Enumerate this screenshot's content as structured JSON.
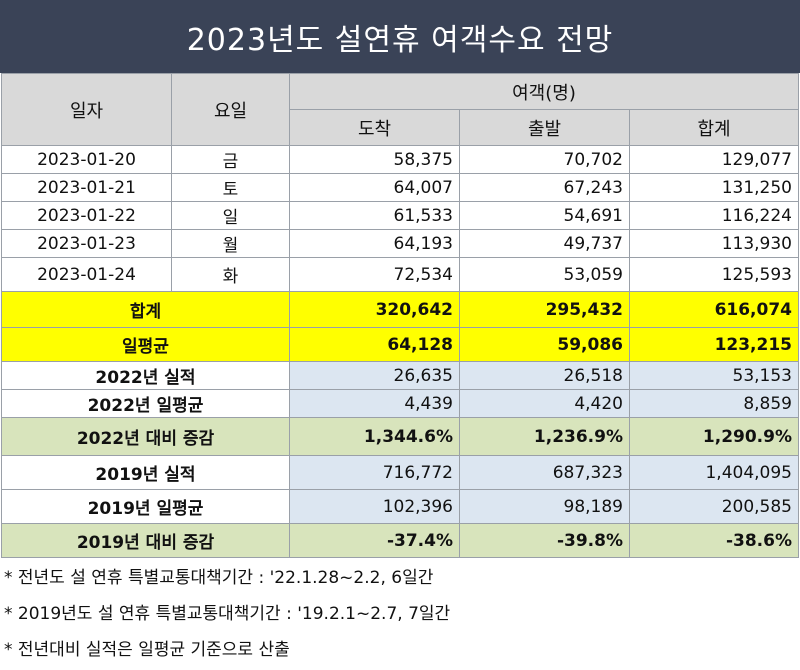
{
  "title": "2023년도 설연휴 여객수요 전망",
  "header": {
    "date": "일자",
    "weekday": "요일",
    "passengers": "여객(명)",
    "arrival": "도착",
    "departure": "출발",
    "total": "합계"
  },
  "days": [
    {
      "date": "2023-01-20",
      "weekday": "금",
      "arrival": "58,375",
      "departure": "70,702",
      "total": "129,077"
    },
    {
      "date": "2023-01-21",
      "weekday": "토",
      "arrival": "64,007",
      "departure": "67,243",
      "total": "131,250"
    },
    {
      "date": "2023-01-22",
      "weekday": "일",
      "arrival": "61,533",
      "departure": "54,691",
      "total": "116,224"
    },
    {
      "date": "2023-01-23",
      "weekday": "월",
      "arrival": "64,193",
      "departure": "49,737",
      "total": "113,930"
    },
    {
      "date": "2023-01-24",
      "weekday": "화",
      "arrival": "72,534",
      "departure": "53,059",
      "total": "125,593"
    }
  ],
  "summary": [
    {
      "label": "합계",
      "arrival": "320,642",
      "departure": "295,432",
      "total": "616,074"
    },
    {
      "label": "일평균",
      "arrival": "64,128",
      "departure": "59,086",
      "total": "123,215"
    },
    {
      "label": "2022년 실적",
      "arrival": "26,635",
      "departure": "26,518",
      "total": "53,153"
    },
    {
      "label": "2022년 일평균",
      "arrival": "4,439",
      "departure": "4,420",
      "total": "8,859"
    },
    {
      "label": "2022년 대비 증감",
      "arrival": "1,344.6%",
      "departure": "1,236.9%",
      "total": "1,290.9%"
    },
    {
      "label": "2019년 실적",
      "arrival": "716,772",
      "departure": "687,323",
      "total": "1,404,095"
    },
    {
      "label": "2019년 일평균",
      "arrival": "102,396",
      "departure": "98,189",
      "total": "200,585"
    },
    {
      "label": "2019년 대비 증감",
      "arrival": "-37.4%",
      "departure": "-39.8%",
      "total": "-38.6%"
    }
  ],
  "notes": [
    "* 전년도 설 연휴 특별교통대책기간 : '22.1.28~2.2, 6일간",
    "* 2019년도 설 연휴 특별교통대책기간 : '19.2.1~2.7, 7일간",
    "* 전년대비 실적은 일평균 기준으로 산출"
  ],
  "colors": {
    "title_bg": "#3a4357",
    "highlight": "#ffff00",
    "prior": "#dce6f1",
    "change": "#d8e4bc"
  }
}
